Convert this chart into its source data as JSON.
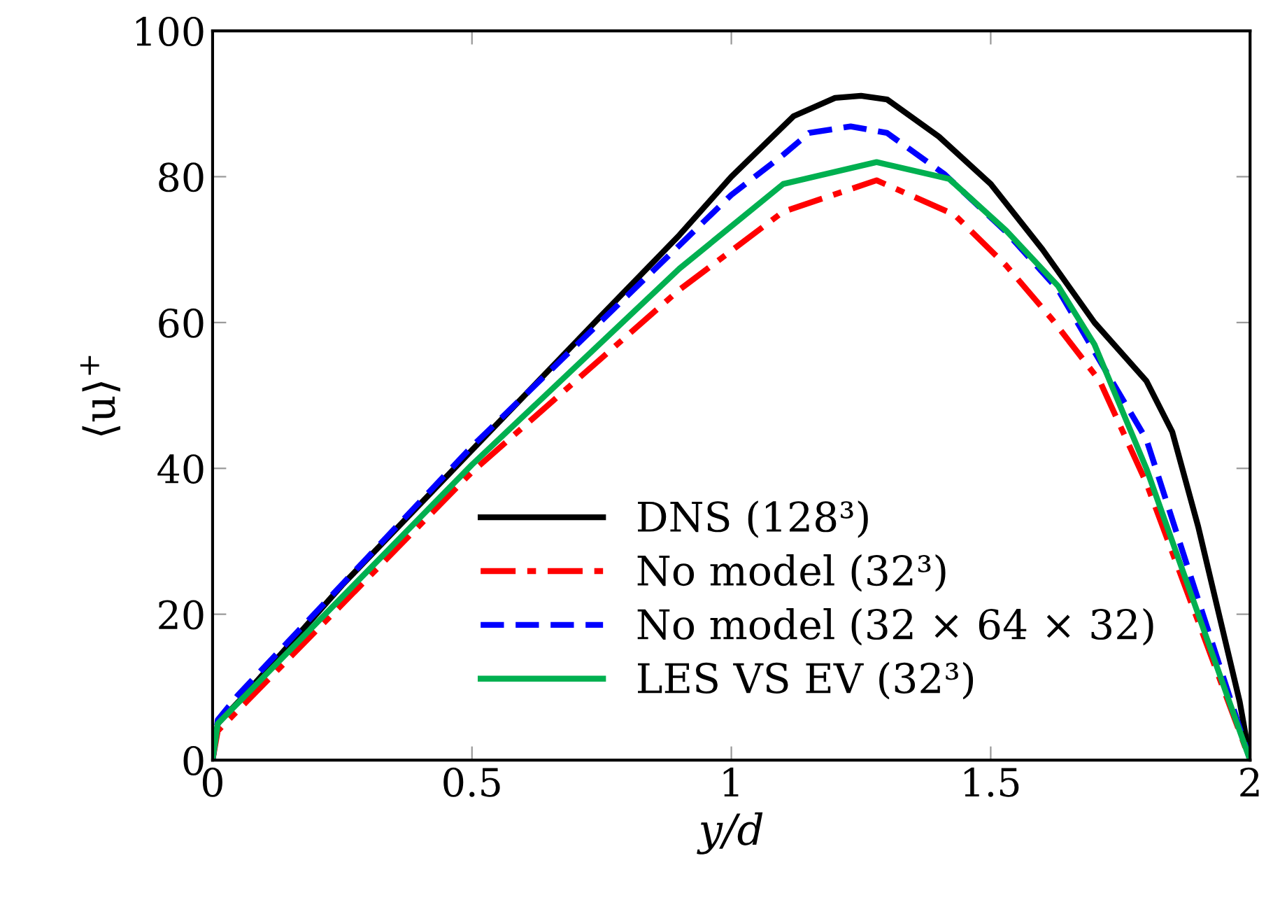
{
  "chart_data": {
    "type": "line",
    "xlabel": "y/d",
    "ylabel": "⟨u⟩$^{+}$",
    "xlim": [
      0,
      2
    ],
    "ylim": [
      0,
      100
    ],
    "xticks": [
      0,
      0.5,
      1,
      1.5,
      2
    ],
    "yticks": [
      0,
      20,
      40,
      60,
      80,
      100
    ],
    "grid": false,
    "legend": "bottom right",
    "marker": "none",
    "series": [
      {
        "name": "DNS (128³)",
        "color": "#000000",
        "line_style": "solid",
        "x": [
          0,
          0.01,
          0.05,
          0.25,
          0.5,
          0.75,
          0.9,
          1.0,
          1.12,
          1.2,
          1.25,
          1.3,
          1.4,
          1.5,
          1.6,
          1.7,
          1.8,
          1.85,
          1.9,
          1.95,
          1.98,
          2
        ],
        "values": [
          0,
          5,
          8,
          24,
          42.5,
          61,
          72,
          80,
          88.3,
          90.8,
          91.1,
          90.6,
          85.5,
          79,
          70,
          60,
          52,
          45,
          32,
          17,
          8,
          0
        ]
      },
      {
        "name": "No model (32³)",
        "color": "#ff0000",
        "line_style": "dashdot",
        "x": [
          0,
          0.01,
          0.5,
          0.9,
          1.1,
          1.28,
          1.43,
          1.53,
          1.62,
          1.71,
          1.8,
          1.9,
          2
        ],
        "values": [
          0,
          4,
          39.5,
          64.5,
          75.2,
          79.5,
          74.8,
          67.8,
          60.3,
          52,
          38,
          19,
          0
        ]
      },
      {
        "name": "No model (32 × 64 × 32)",
        "color": "#0000ff",
        "line_style": "dashed",
        "x": [
          0,
          0.01,
          0.05,
          0.5,
          0.9,
          1.0,
          1.1,
          1.15,
          1.23,
          1.3,
          1.41,
          1.53,
          1.63,
          1.7,
          1.8,
          1.9,
          2
        ],
        "values": [
          0,
          5.5,
          9,
          43,
          70.6,
          77.5,
          83,
          86,
          86.9,
          86,
          80.4,
          72.4,
          64.5,
          56,
          44,
          22,
          0
        ]
      },
      {
        "name": "LES VS EV (32³)",
        "color": "#00b050",
        "line_style": "solid",
        "x": [
          0,
          0.01,
          0.5,
          0.9,
          1.1,
          1.28,
          1.42,
          1.53,
          1.63,
          1.7,
          1.8,
          1.9,
          2
        ],
        "values": [
          0,
          5,
          40.5,
          67.4,
          79,
          82,
          79.7,
          72.6,
          65,
          57,
          40,
          20,
          0
        ]
      }
    ]
  }
}
